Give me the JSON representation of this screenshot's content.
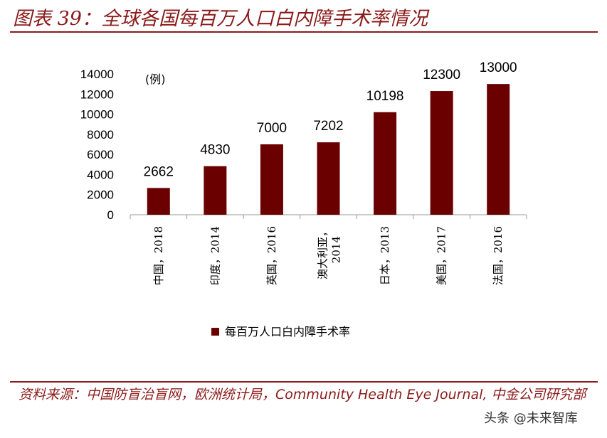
{
  "header": {
    "title": "图表 39：全球各国每百万人口白内障手术率情况"
  },
  "footer": {
    "source": "资料来源：中国防盲治盲网，欧洲统计局，Community Health Eye Journal, 中金公司研究部",
    "watermark": "头条 @未来智库"
  },
  "colors": {
    "bar": "#6b0000",
    "accent": "#8b1a1a"
  },
  "chart_data": {
    "type": "bar",
    "categories": [
      "中国，2018",
      "印度，2014",
      "英国，2016",
      "澳大利亚，2014",
      "日本，2013",
      "美国，2017",
      "法国，2016"
    ],
    "values": [
      2662,
      4830,
      7000,
      7202,
      10198,
      12300,
      13000
    ],
    "data_labels": [
      "2662",
      "4830",
      "7000",
      "7202",
      "10198",
      "12300",
      "13000"
    ],
    "yticks": [
      "0",
      "2000",
      "4000",
      "6000",
      "8000",
      "10000",
      "12000",
      "14000"
    ],
    "ylim": [
      0,
      14000
    ],
    "unit_label": "(例)",
    "legend": [
      "每百万人口白内障手术率"
    ],
    "legend_position": "bottom",
    "grid": false
  }
}
